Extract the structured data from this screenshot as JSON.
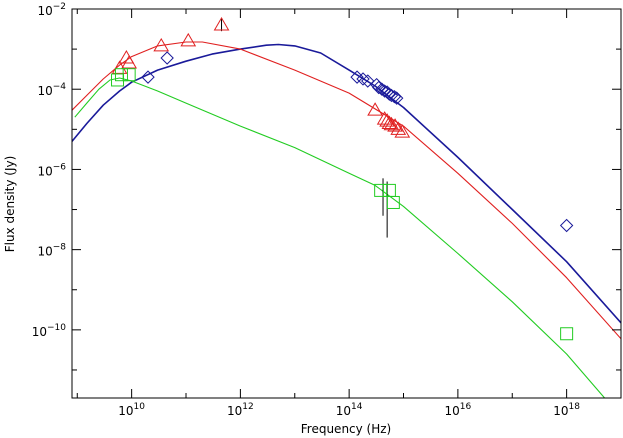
{
  "chart_data": {
    "type": "scatter",
    "title": "",
    "xlabel": "Frequency (Hz)",
    "ylabel": "Flux density (Jy)",
    "x_scale": "log",
    "y_scale": "log",
    "xlim": [
      800000000.0,
      1e+19
    ],
    "ylim": [
      2e-12,
      0.01
    ],
    "grid": false,
    "legend": "none",
    "x_ticks": [
      {
        "value": 10000000000.0,
        "base": "10",
        "exp": "10"
      },
      {
        "value": 1000000000000.0,
        "base": "10",
        "exp": "12"
      },
      {
        "value": 100000000000000.0,
        "base": "10",
        "exp": "14"
      },
      {
        "value": 1e+16,
        "base": "10",
        "exp": "16"
      },
      {
        "value": 1e+18,
        "base": "10",
        "exp": "18"
      }
    ],
    "y_ticks": [
      {
        "value": 1e-10,
        "base": "10",
        "exp": "−10"
      },
      {
        "value": 1e-08,
        "base": "10",
        "exp": "−8"
      },
      {
        "value": 1e-06,
        "base": "10",
        "exp": "−6"
      },
      {
        "value": 0.0001,
        "base": "10",
        "exp": "−4"
      },
      {
        "value": 0.01,
        "base": "10",
        "exp": "−2"
      }
    ],
    "series": [
      {
        "color": "#1a1a9a",
        "marker": "diamond",
        "points": [
          [
            20000000000.0,
            0.0002
          ],
          [
            45000000000.0,
            0.0006
          ],
          [
            140000000000000.0,
            0.0002
          ],
          [
            180000000000000.0,
            0.00018
          ],
          [
            220000000000000.0,
            0.00016
          ],
          [
            320000000000000.0,
            0.00013
          ],
          [
            350000000000000.0,
            0.00011
          ],
          [
            400000000000000.0,
            0.0001
          ],
          [
            450000000000000.0,
            9e-05
          ],
          [
            500000000000000.0,
            8.5e-05
          ],
          [
            550000000000000.0,
            7.5e-05
          ],
          [
            600000000000000.0,
            7e-05
          ],
          [
            680000000000000.0,
            6.5e-05
          ],
          [
            750000000000000.0,
            6e-05
          ],
          [
            1e+18,
            4e-08
          ]
        ],
        "curve": [
          [
            800000000.0,
            5e-06
          ],
          [
            1500000000.0,
            1.4e-05
          ],
          [
            3000000000.0,
            4e-05
          ],
          [
            6000000000.0,
            9e-05
          ],
          [
            10000000000.0,
            0.00015
          ],
          [
            30000000000.0,
            0.0003
          ],
          [
            100000000000.0,
            0.0005
          ],
          [
            300000000000.0,
            0.00075
          ],
          [
            1000000000000.0,
            0.001
          ],
          [
            3000000000000.0,
            0.00125
          ],
          [
            5000000000000.0,
            0.0013
          ],
          [
            10000000000000.0,
            0.0012
          ],
          [
            30000000000000.0,
            0.0008
          ],
          [
            100000000000000.0,
            0.0003
          ],
          [
            300000000000000.0,
            0.00012
          ],
          [
            1000000000000000.0,
            3.5e-05
          ],
          [
            1e+16,
            2e-06
          ],
          [
            1e+17,
            1e-07
          ],
          [
            1e+18,
            5e-09
          ],
          [
            1e+19,
            1.5e-10
          ]
        ]
      },
      {
        "color": "#e02020",
        "marker": "triangle",
        "points": [
          [
            6000000000.0,
            0.00033
          ],
          [
            8000000000.0,
            0.0006
          ],
          [
            9000000000.0,
            0.00045
          ],
          [
            35000000000.0,
            0.0012
          ],
          [
            110000000000.0,
            0.0016
          ],
          [
            450000000000.0,
            0.004
          ],
          [
            300000000000000.0,
            3e-05
          ],
          [
            450000000000000.0,
            1.8e-05
          ],
          [
            500000000000000.0,
            1.6e-05
          ],
          [
            550000000000000.0,
            1.4e-05
          ],
          [
            600000000000000.0,
            1.3e-05
          ],
          [
            700000000000000.0,
            1.2e-05
          ],
          [
            800000000000000.0,
            1e-05
          ],
          [
            950000000000000.0,
            8.5e-06
          ]
        ],
        "errorbars": [
          {
            "x": 450000000000.0,
            "low": 0.0028,
            "high": 0.006
          }
        ],
        "curve": [
          [
            800000000.0,
            3e-05
          ],
          [
            1500000000.0,
            7e-05
          ],
          [
            3000000000.0,
            0.00018
          ],
          [
            6000000000.0,
            0.0004
          ],
          [
            10000000000.0,
            0.00065
          ],
          [
            30000000000.0,
            0.0012
          ],
          [
            100000000000.0,
            0.0015
          ],
          [
            200000000000.0,
            0.0015
          ],
          [
            1000000000000.0,
            0.001
          ],
          [
            10000000000000.0,
            0.0003
          ],
          [
            100000000000000.0,
            8e-05
          ],
          [
            1000000000000000.0,
            1.2e-05
          ],
          [
            1e+16,
            8e-07
          ],
          [
            1e+17,
            4.5e-08
          ],
          [
            1e+18,
            2e-09
          ],
          [
            1e+19,
            6e-11
          ]
        ]
      },
      {
        "color": "#22cc22",
        "marker": "square",
        "points": [
          [
            5500000000.0,
            0.00017
          ],
          [
            6500000000.0,
            0.00023
          ],
          [
            9000000000.0,
            0.00023
          ],
          [
            380000000000000.0,
            3e-07
          ],
          [
            550000000000000.0,
            3e-07
          ],
          [
            650000000000000.0,
            1.5e-07
          ],
          [
            1e+18,
            8e-11
          ]
        ],
        "errorbars": [
          {
            "x": 420000000000000.0,
            "low": 7e-08,
            "high": 6e-07
          },
          {
            "x": 500000000000000.0,
            "low": 2e-08,
            "high": 5e-07
          }
        ],
        "curve": [
          [
            900000000.0,
            2e-05
          ],
          [
            1500000000.0,
            4.5e-05
          ],
          [
            2500000000.0,
            0.0001
          ],
          [
            4000000000.0,
            0.00017
          ],
          [
            6000000000.0,
            0.00019
          ],
          [
            10000000000.0,
            0.00016
          ],
          [
            30000000000.0,
            9e-05
          ],
          [
            100000000000.0,
            4.5e-05
          ],
          [
            1000000000000.0,
            1.2e-05
          ],
          [
            10000000000000.0,
            3.5e-06
          ],
          [
            100000000000000.0,
            8e-07
          ],
          [
            300000000000000.0,
            4e-07
          ],
          [
            1000000000000000.0,
            1.2e-07
          ],
          [
            1e+16,
            8e-09
          ],
          [
            1e+17,
            5e-10
          ],
          [
            1e+18,
            2.5e-11
          ],
          [
            5e+18,
            2e-12
          ]
        ]
      }
    ]
  }
}
